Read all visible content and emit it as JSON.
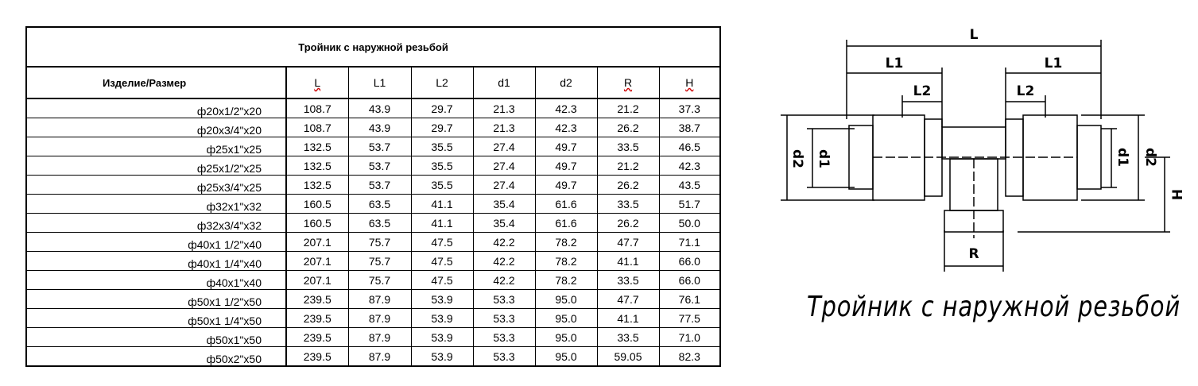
{
  "table": {
    "title": "Тройник с наружной резьбой",
    "header": [
      "Изделие/Размер",
      "L",
      "L1",
      "L2",
      "d1",
      "d2",
      "R",
      "H"
    ],
    "rows": [
      [
        "ф20х1/2\"х20",
        "108.7",
        "43.9",
        "29.7",
        "21.3",
        "42.3",
        "21.2",
        "37.3"
      ],
      [
        "ф20х3/4\"х20",
        "108.7",
        "43.9",
        "29.7",
        "21.3",
        "42.3",
        "26.2",
        "38.7"
      ],
      [
        "ф25х1\"х25",
        "132.5",
        "53.7",
        "35.5",
        "27.4",
        "49.7",
        "33.5",
        "46.5"
      ],
      [
        "ф25х1/2\"х25",
        "132.5",
        "53.7",
        "35.5",
        "27.4",
        "49.7",
        "21.2",
        "42.3"
      ],
      [
        "ф25х3/4\"х25",
        "132.5",
        "53.7",
        "35.5",
        "27.4",
        "49.7",
        "26.2",
        "43.5"
      ],
      [
        "ф32х1\"х32",
        "160.5",
        "63.5",
        "41.1",
        "35.4",
        "61.6",
        "33.5",
        "51.7"
      ],
      [
        "ф32х3/4\"х32",
        "160.5",
        "63.5",
        "41.1",
        "35.4",
        "61.6",
        "26.2",
        "50.0"
      ],
      [
        "ф40х1 1/2\"х40",
        "207.1",
        "75.7",
        "47.5",
        "42.2",
        "78.2",
        "47.7",
        "71.1"
      ],
      [
        "ф40х1 1/4\"х40",
        "207.1",
        "75.7",
        "47.5",
        "42.2",
        "78.2",
        "41.1",
        "66.0"
      ],
      [
        "ф40х1\"х40",
        "207.1",
        "75.7",
        "47.5",
        "42.2",
        "78.2",
        "33.5",
        "66.0"
      ],
      [
        "ф50х1 1/2\"х50",
        "239.5",
        "87.9",
        "53.9",
        "53.3",
        "95.0",
        "47.7",
        "76.1"
      ],
      [
        "ф50х1 1/4\"х50",
        "239.5",
        "87.9",
        "53.9",
        "53.3",
        "95.0",
        "41.1",
        "77.5"
      ],
      [
        "ф50х1\"х50",
        "239.5",
        "87.9",
        "53.9",
        "53.3",
        "95.0",
        "33.5",
        "71.0"
      ],
      [
        "ф50х2\"х50",
        "239.5",
        "87.9",
        "53.9",
        "53.3",
        "95.0",
        "59.05",
        "82.3"
      ]
    ]
  },
  "drawing": {
    "dimensions": [
      "L",
      "L1",
      "L1",
      "L2",
      "L2",
      "d2",
      "d1",
      "d1",
      "d2",
      "H",
      "R"
    ],
    "caption": "Тройник с наружной резьбой"
  }
}
